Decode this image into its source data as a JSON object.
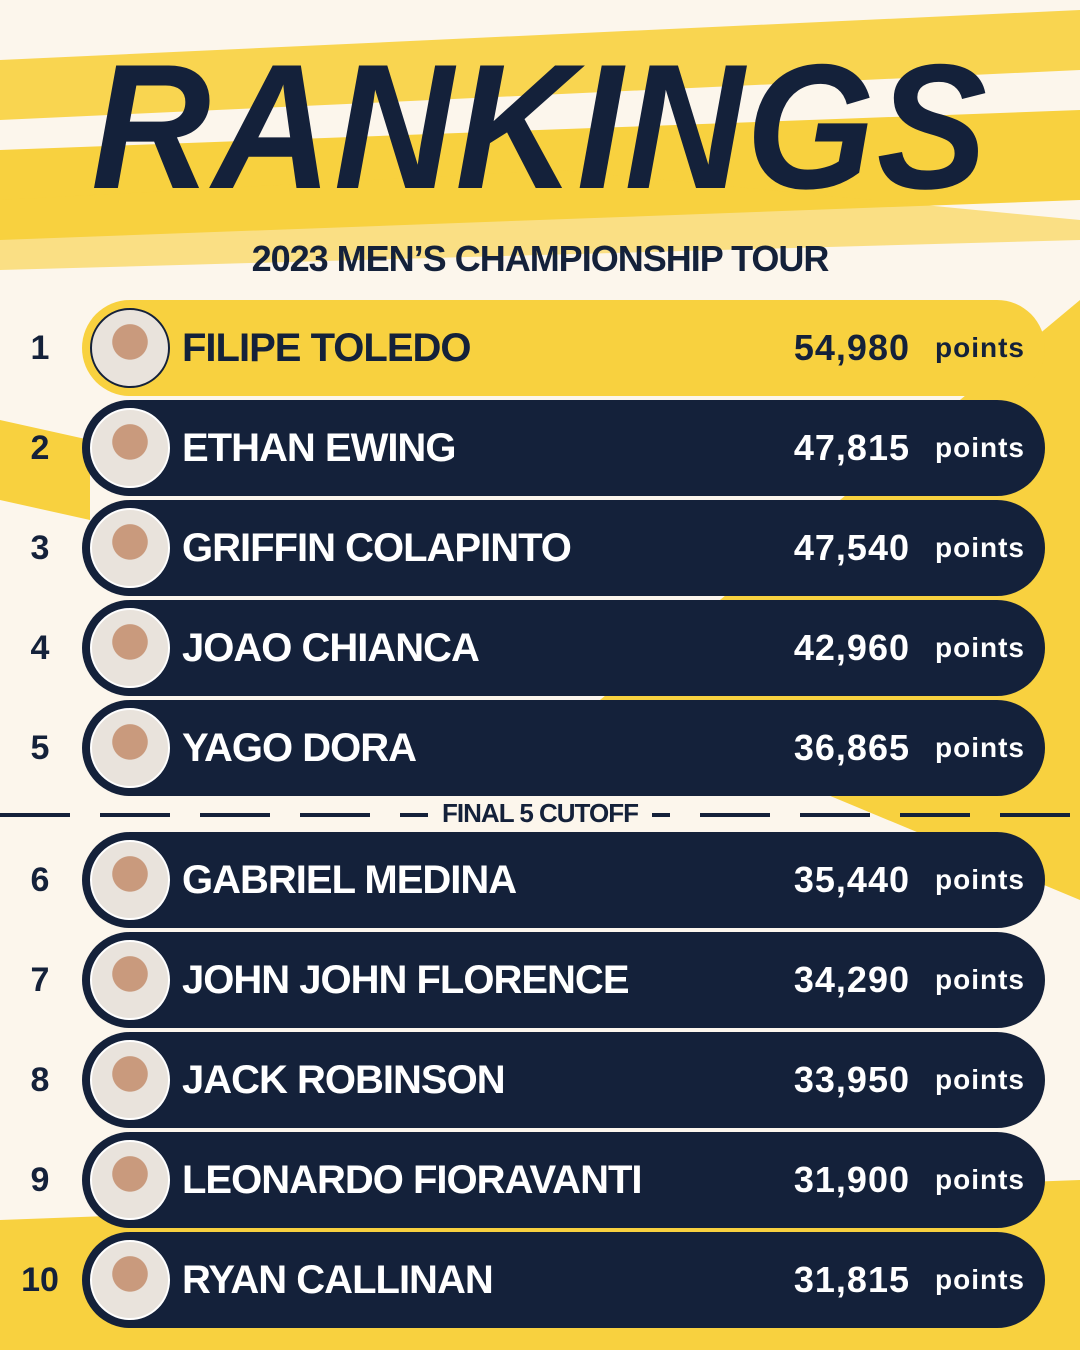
{
  "header": {
    "title": "RANKINGS",
    "subtitle": "2023 MEN’S CHAMPIONSHIP TOUR"
  },
  "unit": "points",
  "cutoff": "FINAL 5 CUTOFF",
  "rows": [
    {
      "rank": 1,
      "name": "FILIPE TOLEDO",
      "points": "54,980"
    },
    {
      "rank": 2,
      "name": "ETHAN EWING",
      "points": "47,815"
    },
    {
      "rank": 3,
      "name": "GRIFFIN COLAPINTO",
      "points": "47,540"
    },
    {
      "rank": 4,
      "name": "JOAO CHIANCA",
      "points": "42,960"
    },
    {
      "rank": 5,
      "name": "YAGO DORA",
      "points": "36,865"
    },
    {
      "rank": 6,
      "name": "GABRIEL MEDINA",
      "points": "35,440"
    },
    {
      "rank": 7,
      "name": "JOHN JOHN FLORENCE",
      "points": "34,290"
    },
    {
      "rank": 8,
      "name": "JACK ROBINSON",
      "points": "33,950"
    },
    {
      "rank": 9,
      "name": "LEONARDO FIORAVANTI",
      "points": "31,900"
    },
    {
      "rank": 10,
      "name": "RYAN CALLINAN",
      "points": "31,815"
    }
  ]
}
